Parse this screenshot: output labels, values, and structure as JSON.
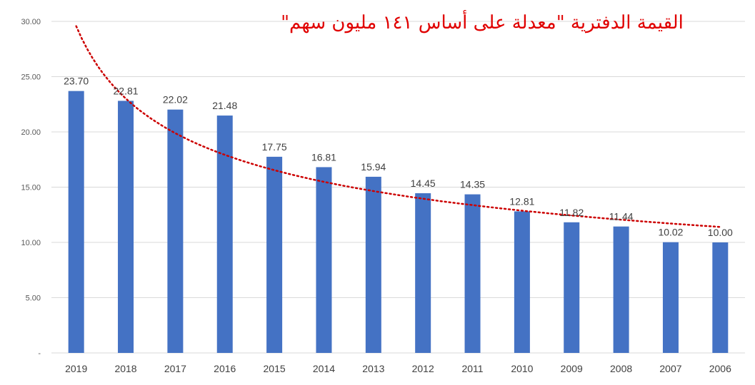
{
  "chart_data": {
    "type": "bar",
    "title": "القيمة الدفترية \"معدلة على أساس ١٤١ مليون سهم\"",
    "categories": [
      "2019",
      "2018",
      "2017",
      "2016",
      "2015",
      "2014",
      "2013",
      "2012",
      "2011",
      "2010",
      "2009",
      "2008",
      "2007",
      "2006"
    ],
    "values": [
      23.7,
      22.81,
      22.02,
      21.48,
      17.75,
      16.81,
      15.94,
      14.45,
      14.35,
      12.81,
      11.82,
      11.44,
      10.02,
      10.0
    ],
    "data_labels": [
      "23.70",
      "22.81",
      "22.02",
      "21.48",
      "17.75",
      "16.81",
      "15.94",
      "14.45",
      "14.35",
      "12.81",
      "11.82",
      "11.44",
      "10.02",
      "10.00"
    ],
    "y_ticks": [
      "-",
      "5.00",
      "10.00",
      "15.00",
      "20.00",
      "25.00",
      "30.00"
    ],
    "ylim": [
      0,
      30
    ],
    "grid": true,
    "trendline": {
      "type": "power",
      "style": "dotted",
      "color": "#cc0000"
    },
    "colors": {
      "bar": "#4472c4",
      "grid": "#d9d9d9",
      "title": "#e00000",
      "trend": "#cc0000"
    }
  }
}
